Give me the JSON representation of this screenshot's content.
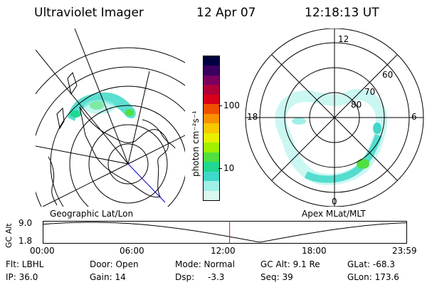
{
  "header": {
    "title": "Ultraviolet Imager",
    "date": "12 Apr 07",
    "time": "12:18:13 UT"
  },
  "geo_map": {
    "caption": "Geographic Lat/Lon"
  },
  "apex_map": {
    "caption": "Apex MLat/MLT",
    "mlt_labels": [
      "12",
      "18",
      "6",
      "0"
    ],
    "mlat_labels": [
      "60",
      "70",
      "80"
    ]
  },
  "colorbar": {
    "unit": "photon cm⁻²s⁻¹",
    "ticks": [
      "100",
      "10"
    ],
    "colors": [
      "#000040",
      "#3a0060",
      "#7a0060",
      "#b0003a",
      "#d80018",
      "#f05000",
      "#f89000",
      "#f8c800",
      "#e8f000",
      "#a0f000",
      "#50e040",
      "#20d890",
      "#40d8c8",
      "#a0f0e8",
      "#d8f8f0"
    ]
  },
  "altitude_plot": {
    "ylabel": "GC Alt",
    "yticks": [
      "9.0",
      "1.8"
    ],
    "xticks": [
      "00:00",
      "06:00",
      "12:00",
      "18:00",
      "23:59"
    ],
    "current_time_fraction": 0.513,
    "line_color": "#ff0000"
  },
  "status": {
    "filter": "Flt: LBHL",
    "ip": "IP: 36.0",
    "door": "Door: Open",
    "gain": "Gain: 14",
    "mode": "Mode: Normal",
    "dsp": "Dsp:",
    "dsp_value": "-3.3",
    "gc_alt": "GC Alt: 9.1 Re",
    "seq": "Seq: 39",
    "glat": "GLat: -68.3",
    "glon": "GLon: 173.6"
  }
}
